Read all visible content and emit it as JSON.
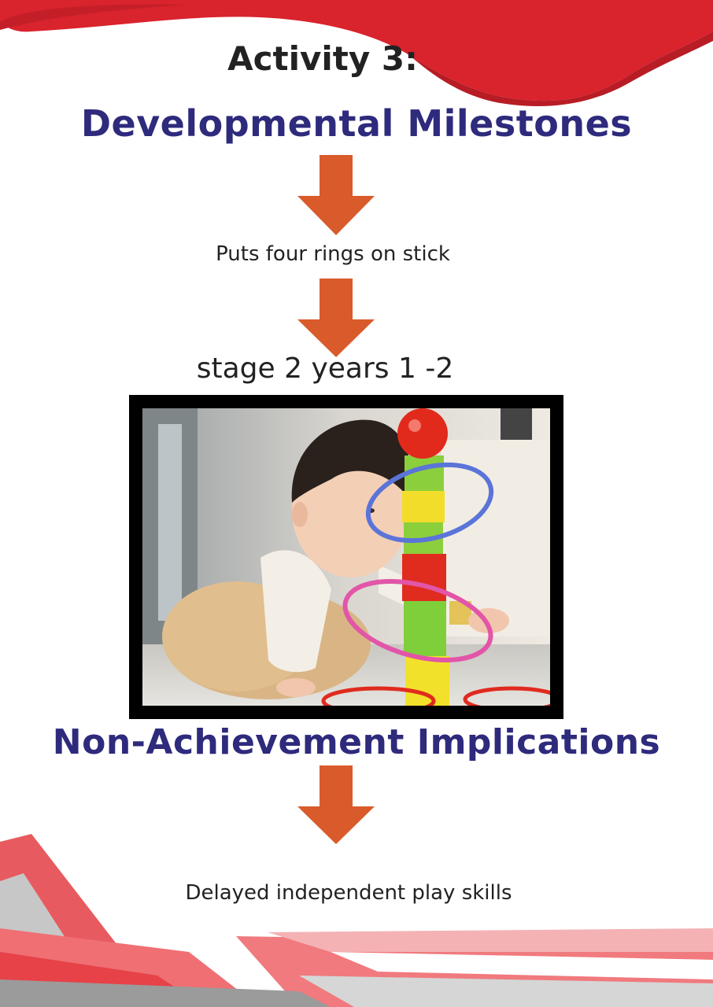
{
  "page": {
    "activity_title": "Activity 3:",
    "milestones_heading": "Developmental Milestones",
    "milestone": "Puts four rings on stick",
    "stage": "stage 2 years 1 -2",
    "implications_heading": "Non-Achievement Implications",
    "implication": "Delayed independent play skills"
  },
  "colors": {
    "heading": "#2e2a7c",
    "arrow": "#d95b2b",
    "banner_red": "#d9232d",
    "frame": "#000000"
  },
  "icons": {
    "arrows": "down-arrow-icon",
    "photo": "child-stacking-rings-photo"
  }
}
